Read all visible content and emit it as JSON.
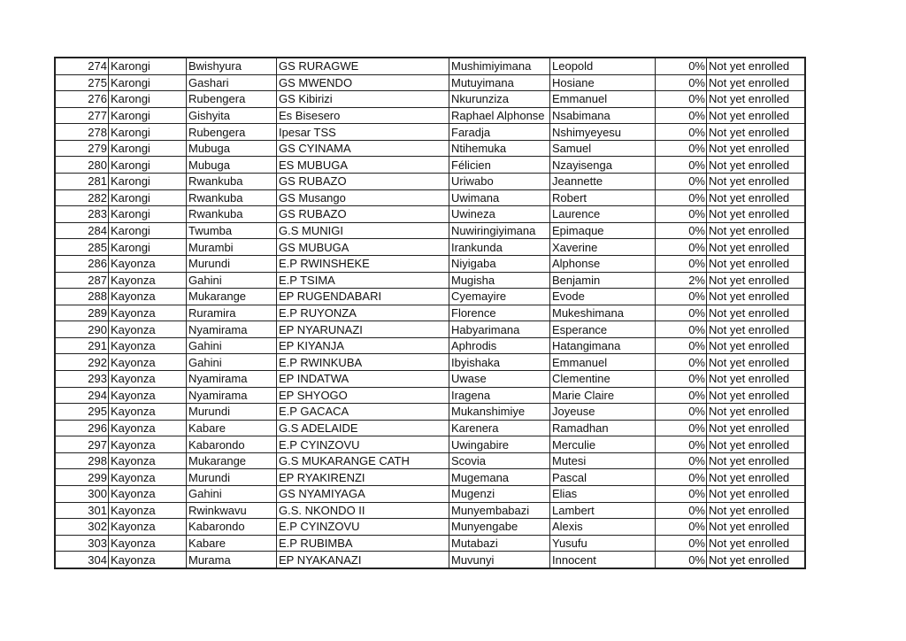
{
  "rows": [
    [
      "274",
      "Karongi",
      "Bwishyura",
      "GS RURAGWE",
      "Mushimiyimana",
      "Leopold",
      "0%",
      "Not yet enrolled"
    ],
    [
      "275",
      "Karongi",
      "Gashari",
      "GS MWENDO",
      "Mutuyimana",
      "Hosiane",
      "0%",
      "Not yet enrolled"
    ],
    [
      "276",
      "Karongi",
      "Rubengera",
      "GS Kibirizi",
      "Nkurunziza",
      "Emmanuel",
      "0%",
      "Not yet enrolled"
    ],
    [
      "277",
      "Karongi",
      "Gishyita",
      "Es Bisesero",
      "Raphael Alphonse",
      "Nsabimana",
      "0%",
      "Not yet enrolled"
    ],
    [
      "278",
      "Karongi",
      "Rubengera",
      "Ipesar TSS",
      "Faradja",
      "Nshimyeyesu",
      "0%",
      "Not yet enrolled"
    ],
    [
      "279",
      "Karongi",
      "Mubuga",
      "GS CYINAMA",
      "Ntihemuka",
      "Samuel",
      "0%",
      "Not yet enrolled"
    ],
    [
      "280",
      "Karongi",
      "Mubuga",
      "ES MUBUGA",
      "Félicien",
      "Nzayisenga",
      "0%",
      "Not yet enrolled"
    ],
    [
      "281",
      "Karongi",
      "Rwankuba",
      "GS RUBAZO",
      "Uriwabo",
      "Jeannette",
      "0%",
      "Not yet enrolled"
    ],
    [
      "282",
      "Karongi",
      "Rwankuba",
      "GS Musango",
      "Uwimana",
      "Robert",
      "0%",
      "Not yet enrolled"
    ],
    [
      "283",
      "Karongi",
      "Rwankuba",
      "GS RUBAZO",
      "Uwineza",
      "Laurence",
      "0%",
      "Not yet enrolled"
    ],
    [
      "284",
      "Karongi",
      "Twumba",
      "G.S MUNIGI",
      "Nuwiringiyimana",
      "Epimaque",
      "0%",
      "Not yet enrolled"
    ],
    [
      "285",
      "Karongi",
      "Murambi",
      "GS MUBUGA",
      "Irankunda",
      "Xaverine",
      "0%",
      "Not yet enrolled"
    ],
    [
      "286",
      "Kayonza",
      "Murundi",
      "E.P RWINSHEKE",
      "Niyigaba",
      "Alphonse",
      "0%",
      "Not yet enrolled"
    ],
    [
      "287",
      "Kayonza",
      "Gahini",
      "E.P TSIMA",
      "Mugisha",
      "Benjamin",
      "2%",
      "Not yet enrolled"
    ],
    [
      "288",
      "Kayonza",
      "Mukarange",
      "EP RUGENDABARI",
      "Cyemayire",
      "Evode",
      "0%",
      "Not yet enrolled"
    ],
    [
      "289",
      "Kayonza",
      "Ruramira",
      "E.P RUYONZA",
      "Florence",
      "Mukeshimana",
      "0%",
      "Not yet enrolled"
    ],
    [
      "290",
      "Kayonza",
      "Nyamirama",
      "EP NYARUNAZI",
      "Habyarimana",
      "Esperance",
      "0%",
      "Not yet enrolled"
    ],
    [
      "291",
      "Kayonza",
      "Gahini",
      "EP KIYANJA",
      "Aphrodis",
      "Hatangimana",
      "0%",
      "Not yet enrolled"
    ],
    [
      "292",
      "Kayonza",
      "Gahini",
      "E.P RWINKUBA",
      "Ibyishaka",
      "Emmanuel",
      "0%",
      "Not yet enrolled"
    ],
    [
      "293",
      "Kayonza",
      "Nyamirama",
      "EP INDATWA",
      "Uwase",
      "Clementine",
      "0%",
      "Not yet enrolled"
    ],
    [
      "294",
      "Kayonza",
      "Nyamirama",
      "EP SHYOGO",
      "Iragena",
      "Marie Claire",
      "0%",
      "Not yet enrolled"
    ],
    [
      "295",
      "Kayonza",
      "Murundi",
      "E.P GACACA",
      "Mukanshimiye",
      "Joyeuse",
      "0%",
      "Not yet enrolled"
    ],
    [
      "296",
      "Kayonza",
      "Kabare",
      "G.S ADELAIDE",
      "Karenera",
      "Ramadhan",
      "0%",
      "Not yet enrolled"
    ],
    [
      "297",
      "Kayonza",
      "Kabarondo",
      "E.P CYINZOVU",
      "Uwingabire",
      "Merculie",
      "0%",
      "Not yet enrolled"
    ],
    [
      "298",
      "Kayonza",
      "Mukarange",
      "G.S MUKARANGE CATH",
      "Scovia",
      "Mutesi",
      "0%",
      "Not yet enrolled"
    ],
    [
      "299",
      "Kayonza",
      "Murundi",
      "EP RYAKIRENZI",
      "Mugemana",
      "Pascal",
      "0%",
      "Not yet enrolled"
    ],
    [
      "300",
      "Kayonza",
      "Gahini",
      "GS NYAMIYAGA",
      "Mugenzi",
      "Elias",
      "0%",
      "Not yet enrolled"
    ],
    [
      "301",
      "Kayonza",
      "Rwinkwavu",
      "G.S. NKONDO II",
      "Munyembabazi",
      "Lambert",
      "0%",
      "Not yet enrolled"
    ],
    [
      "302",
      "Kayonza",
      "Kabarondo",
      "E.P CYINZOVU",
      "Munyengabe",
      "Alexis",
      "0%",
      "Not yet enrolled"
    ],
    [
      "303",
      "Kayonza",
      "Kabare",
      "E.P RUBIMBA",
      "Mutabazi",
      "Yusufu",
      "0%",
      "Not yet enrolled"
    ],
    [
      "304",
      "Kayonza",
      "Murama",
      "EP NYAKANAZI",
      "Muvunyi",
      "Innocent",
      "0%",
      "Not yet enrolled"
    ]
  ]
}
